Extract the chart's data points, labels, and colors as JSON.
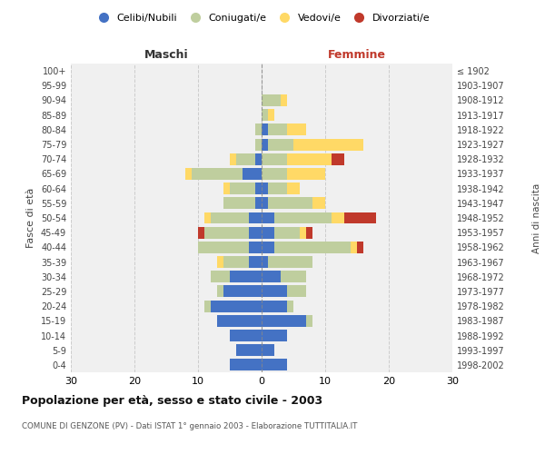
{
  "age_groups": [
    "0-4",
    "5-9",
    "10-14",
    "15-19",
    "20-24",
    "25-29",
    "30-34",
    "35-39",
    "40-44",
    "45-49",
    "50-54",
    "55-59",
    "60-64",
    "65-69",
    "70-74",
    "75-79",
    "80-84",
    "85-89",
    "90-94",
    "95-99",
    "100+"
  ],
  "birth_years": [
    "1998-2002",
    "1993-1997",
    "1988-1992",
    "1983-1987",
    "1978-1982",
    "1973-1977",
    "1968-1972",
    "1963-1967",
    "1958-1962",
    "1953-1957",
    "1948-1952",
    "1943-1947",
    "1938-1942",
    "1933-1937",
    "1928-1932",
    "1923-1927",
    "1918-1922",
    "1913-1917",
    "1908-1912",
    "1903-1907",
    "≤ 1902"
  ],
  "males": {
    "celibi": [
      5,
      4,
      5,
      7,
      8,
      6,
      5,
      2,
      2,
      2,
      2,
      1,
      1,
      3,
      1,
      0,
      0,
      0,
      0,
      0,
      0
    ],
    "coniugati": [
      0,
      0,
      0,
      0,
      1,
      1,
      3,
      4,
      8,
      7,
      6,
      5,
      4,
      8,
      3,
      1,
      1,
      0,
      0,
      0,
      0
    ],
    "vedovi": [
      0,
      0,
      0,
      0,
      0,
      0,
      0,
      1,
      0,
      0,
      1,
      0,
      1,
      1,
      1,
      0,
      0,
      0,
      0,
      0,
      0
    ],
    "divorziati": [
      0,
      0,
      0,
      0,
      0,
      0,
      0,
      0,
      0,
      1,
      0,
      0,
      0,
      0,
      0,
      0,
      0,
      0,
      0,
      0,
      0
    ]
  },
  "females": {
    "nubili": [
      4,
      2,
      4,
      7,
      4,
      4,
      3,
      1,
      2,
      2,
      2,
      1,
      1,
      0,
      0,
      1,
      1,
      0,
      0,
      0,
      0
    ],
    "coniugate": [
      0,
      0,
      0,
      1,
      1,
      3,
      4,
      7,
      12,
      4,
      9,
      7,
      3,
      4,
      4,
      4,
      3,
      1,
      3,
      0,
      0
    ],
    "vedove": [
      0,
      0,
      0,
      0,
      0,
      0,
      0,
      0,
      1,
      1,
      2,
      2,
      2,
      6,
      7,
      11,
      3,
      1,
      1,
      0,
      0
    ],
    "divorziate": [
      0,
      0,
      0,
      0,
      0,
      0,
      0,
      0,
      1,
      1,
      5,
      0,
      0,
      0,
      2,
      0,
      0,
      0,
      0,
      0,
      0
    ]
  },
  "colors": {
    "celibi_nubili": "#4472C4",
    "coniugati": "#BFCE9E",
    "vedovi": "#FFD966",
    "divorziati": "#C0392B"
  },
  "xlim": 30,
  "title": "Popolazione per età, sesso e stato civile - 2003",
  "subtitle": "COMUNE DI GENZONE (PV) - Dati ISTAT 1° gennaio 2003 - Elaborazione TUTTITALIA.IT",
  "ylabel_left": "Fasce di età",
  "ylabel_right": "Anni di nascita",
  "xlabel_left": "Maschi",
  "xlabel_right": "Femmine",
  "legend_labels": [
    "Celibi/Nubili",
    "Coniugati/e",
    "Vedovi/e",
    "Divorziati/e"
  ],
  "bg_color": "#f0f0f0",
  "grid_color": "#cccccc"
}
